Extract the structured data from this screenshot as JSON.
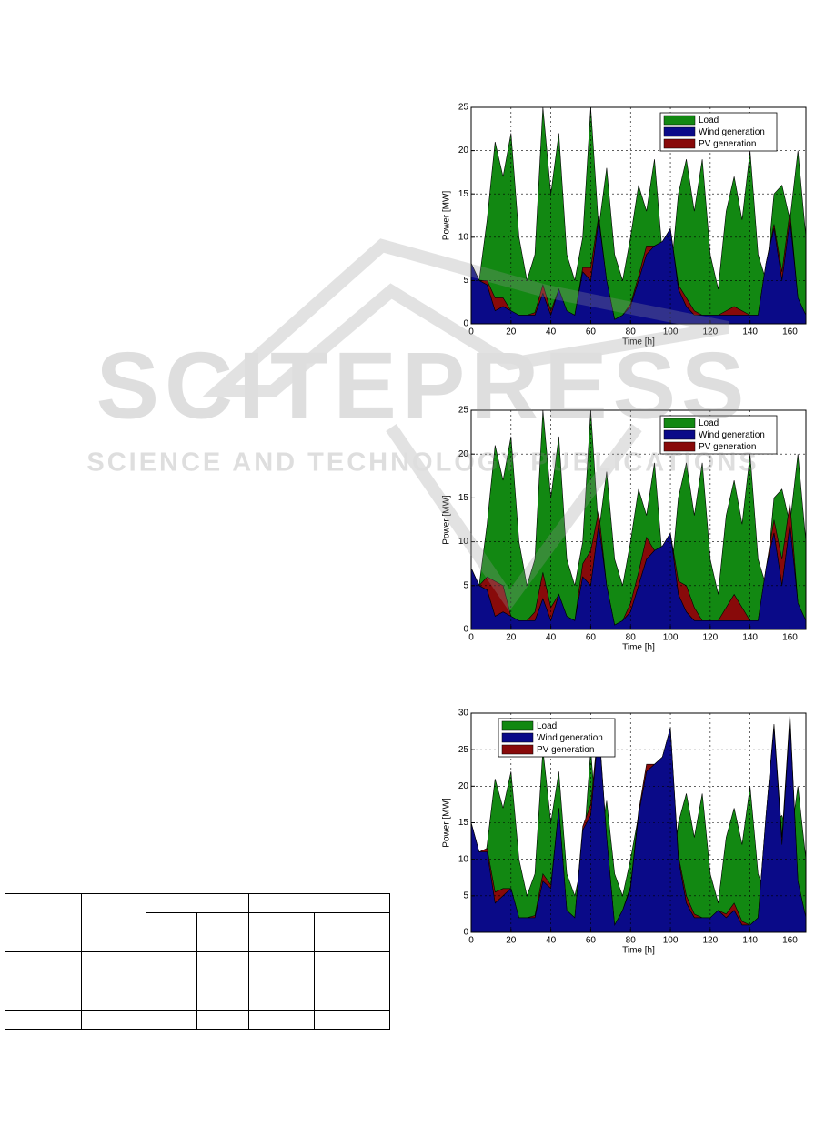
{
  "watermark": {
    "title": "SCITEPRESS",
    "subtitle": "SCIENCE AND TECHNOLOGY PUBLICATIONS"
  },
  "chart_data": [
    {
      "type": "area",
      "xlabel": "Time [h]",
      "ylabel": "Power [MW]",
      "legend": "upper right",
      "grid": true,
      "xlim": [
        0,
        168
      ],
      "xticks": [
        0,
        20,
        40,
        60,
        80,
        100,
        120,
        140,
        160
      ],
      "ylim": [
        0,
        25
      ],
      "yticks": [
        0,
        5,
        10,
        15,
        20,
        25
      ],
      "x": [
        0,
        4,
        8,
        12,
        16,
        20,
        24,
        28,
        32,
        36,
        40,
        44,
        48,
        52,
        56,
        60,
        64,
        68,
        72,
        76,
        80,
        84,
        88,
        92,
        96,
        100,
        104,
        108,
        112,
        116,
        120,
        124,
        128,
        132,
        136,
        140,
        144,
        148,
        152,
        156,
        160,
        164,
        168
      ],
      "series": [
        {
          "name": "Load",
          "color": "#128812",
          "values": [
            7,
            5,
            12,
            21,
            17,
            22,
            10,
            5,
            8,
            25,
            15,
            22,
            8,
            5,
            10,
            25,
            11,
            18,
            8,
            5,
            10,
            16,
            13,
            19,
            8,
            5,
            15,
            19,
            13,
            19,
            8,
            4,
            13,
            17,
            12,
            20,
            8,
            5,
            15,
            16,
            12,
            20,
            10
          ]
        },
        {
          "name": "Wind generation",
          "color": "#0a0a88",
          "values": [
            7,
            5,
            4.5,
            1.5,
            2,
            1.5,
            1,
            1,
            1,
            3.5,
            1,
            4,
            1.5,
            1,
            6,
            5,
            12,
            5,
            0.5,
            1,
            2,
            5,
            8,
            9,
            9.5,
            11,
            4,
            2,
            1,
            1,
            1,
            1,
            1,
            1,
            1,
            1,
            1,
            7,
            11,
            5,
            12,
            3,
            1
          ]
        },
        {
          "name": "PV generation",
          "color": "#880a0a",
          "values": [
            0,
            0,
            0.5,
            1.5,
            1,
            0,
            0,
            0,
            0.3,
            1,
            0.5,
            0,
            0,
            0,
            0.5,
            1.5,
            0.5,
            0,
            0,
            0,
            0.3,
            0.5,
            1,
            0,
            0,
            0,
            0.5,
            1,
            0.5,
            0,
            0,
            0,
            0.5,
            1,
            0.5,
            0,
            0,
            0,
            0.5,
            1,
            1,
            0,
            0
          ]
        }
      ]
    },
    {
      "type": "area",
      "xlabel": "Time [h]",
      "ylabel": "Power [MW]",
      "legend": "upper right",
      "grid": true,
      "xlim": [
        0,
        168
      ],
      "xticks": [
        0,
        20,
        40,
        60,
        80,
        100,
        120,
        140,
        160
      ],
      "ylim": [
        0,
        25
      ],
      "yticks": [
        0,
        5,
        10,
        15,
        20,
        25
      ],
      "x": [
        0,
        4,
        8,
        12,
        16,
        20,
        24,
        28,
        32,
        36,
        40,
        44,
        48,
        52,
        56,
        60,
        64,
        68,
        72,
        76,
        80,
        84,
        88,
        92,
        96,
        100,
        104,
        108,
        112,
        116,
        120,
        124,
        128,
        132,
        136,
        140,
        144,
        148,
        152,
        156,
        160,
        164,
        168
      ],
      "series": [
        {
          "name": "Load",
          "color": "#128812",
          "values": [
            7,
            5,
            12,
            21,
            17,
            22,
            10,
            5,
            8,
            25,
            15,
            22,
            8,
            5,
            10,
            25,
            11,
            18,
            8,
            5,
            10,
            16,
            13,
            19,
            8,
            5,
            15,
            19,
            13,
            19,
            8,
            4,
            13,
            17,
            12,
            20,
            8,
            5,
            15,
            16,
            12,
            20,
            10
          ]
        },
        {
          "name": "Wind generation",
          "color": "#0a0a88",
          "values": [
            7,
            5,
            4.5,
            1.5,
            2,
            1.5,
            1,
            1,
            1,
            3.5,
            1,
            4,
            1.5,
            1,
            6,
            5,
            12,
            5,
            0.5,
            1,
            2,
            5,
            8,
            9,
            9.5,
            11,
            4,
            2,
            1,
            1,
            1,
            1,
            1,
            1,
            1,
            1,
            1,
            7,
            11,
            5,
            12,
            3,
            1
          ]
        },
        {
          "name": "PV generation",
          "color": "#880a0a",
          "values": [
            0,
            0,
            1.5,
            4,
            3,
            0,
            0,
            0,
            1,
            3,
            1.5,
            0,
            0,
            0,
            1.5,
            4,
            1.5,
            0,
            0,
            0,
            1,
            1.5,
            2.5,
            0,
            0,
            0,
            1.5,
            3,
            1.5,
            0,
            0,
            0,
            1.5,
            3,
            1.5,
            0,
            0,
            0,
            1.5,
            3,
            2.5,
            0,
            0
          ]
        }
      ]
    },
    {
      "type": "area",
      "xlabel": "Time [h]",
      "ylabel": "Power [MW]",
      "legend": "upper left",
      "grid": true,
      "xlim": [
        0,
        168
      ],
      "xticks": [
        0,
        20,
        40,
        60,
        80,
        100,
        120,
        140,
        160
      ],
      "ylim": [
        0,
        30
      ],
      "yticks": [
        0,
        5,
        10,
        15,
        20,
        25,
        30
      ],
      "x": [
        0,
        4,
        8,
        12,
        16,
        20,
        24,
        28,
        32,
        36,
        40,
        44,
        48,
        52,
        56,
        60,
        64,
        68,
        72,
        76,
        80,
        84,
        88,
        92,
        96,
        100,
        104,
        108,
        112,
        116,
        120,
        124,
        128,
        132,
        136,
        140,
        144,
        148,
        152,
        156,
        160,
        164,
        168
      ],
      "series": [
        {
          "name": "Load",
          "color": "#128812",
          "values": [
            7,
            5,
            12,
            21,
            17,
            22,
            10,
            5,
            8,
            25,
            15,
            22,
            8,
            5,
            10,
            25,
            11,
            18,
            8,
            5,
            10,
            16,
            13,
            19,
            8,
            5,
            15,
            19,
            13,
            19,
            8,
            4,
            13,
            17,
            12,
            20,
            8,
            5,
            15,
            16,
            12,
            20,
            10
          ]
        },
        {
          "name": "Wind generation",
          "color": "#0a0a88",
          "values": [
            15,
            11,
            11,
            4,
            5,
            6,
            2,
            2,
            2,
            7,
            6,
            17,
            3,
            2,
            14,
            16,
            28,
            13,
            1,
            3,
            6,
            16,
            22,
            23,
            24,
            28,
            10,
            4,
            2,
            2,
            2,
            3,
            2,
            3,
            1,
            1,
            2,
            16,
            28,
            12,
            29,
            7,
            2
          ]
        },
        {
          "name": "PV generation",
          "color": "#880a0a",
          "values": [
            0,
            0,
            0.5,
            1.5,
            1,
            0,
            0,
            0,
            0.3,
            1,
            0.5,
            0,
            0,
            0,
            0.5,
            1.5,
            0.5,
            0,
            0,
            0,
            0.3,
            0.5,
            1,
            0,
            0,
            0,
            0.5,
            1,
            0.5,
            0,
            0,
            0,
            0.5,
            1,
            0.5,
            0,
            0,
            0,
            0.5,
            1,
            1,
            0,
            0
          ]
        }
      ]
    }
  ]
}
